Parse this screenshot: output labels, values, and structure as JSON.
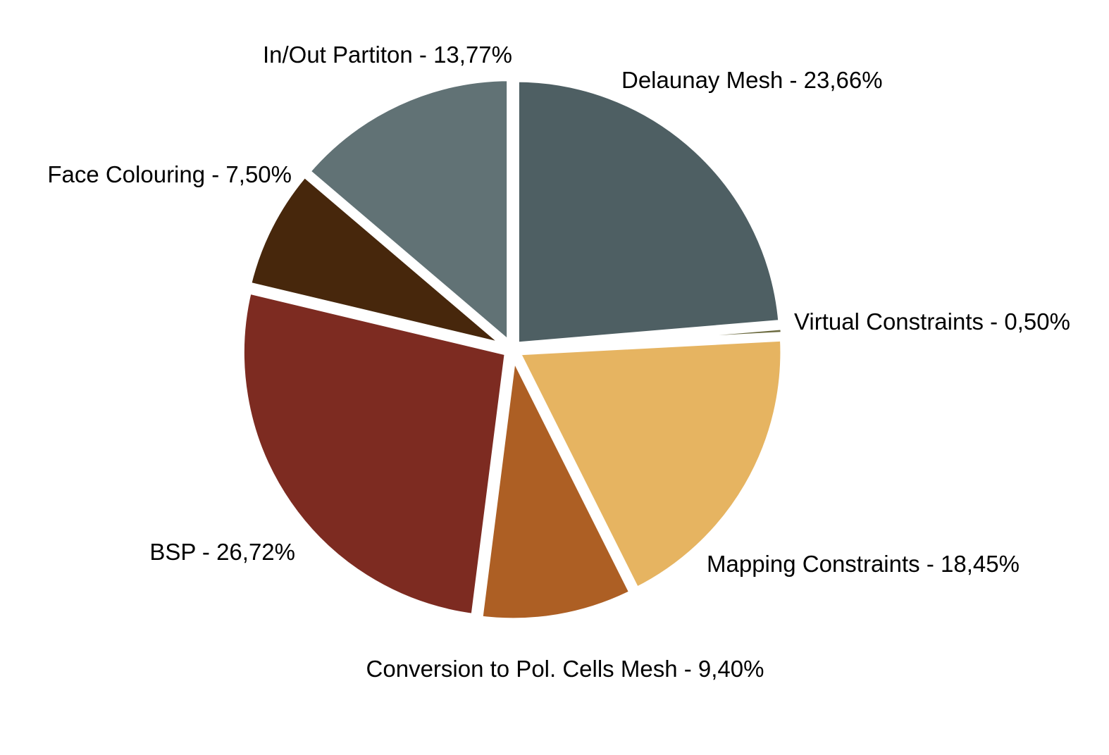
{
  "chart_data": {
    "type": "pie",
    "title": "",
    "legend": "none",
    "start_angle_deg": 0,
    "direction": "clockwise",
    "slices": [
      {
        "label": "Delaunay Mesh - 23,66%",
        "name": "Delaunay Mesh",
        "value": 23.66,
        "color": "#4e5f63"
      },
      {
        "label": "Virtual Constraints - 0,50%",
        "name": "Virtual Constraints",
        "value": 0.5,
        "color": "#6b6a3f"
      },
      {
        "label": "Mapping Constraints - 18,45%",
        "name": "Mapping Constraints",
        "value": 18.45,
        "color": "#e6b461"
      },
      {
        "label": "Conversion to Pol. Cells Mesh - 9,40%",
        "name": "Conversion to Pol. Cells Mesh",
        "value": 9.4,
        "color": "#ad5f24"
      },
      {
        "label": "BSP - 26,72%",
        "name": "BSP",
        "value": 26.72,
        "color": "#7d2b21"
      },
      {
        "label": "Face Colouring - 7,50%",
        "name": "Face Colouring",
        "value": 7.5,
        "color": "#47270c"
      },
      {
        "label": "In/Out Partiton - 13,77%",
        "name": "In/Out Partiton",
        "value": 13.77,
        "color": "#617275"
      }
    ]
  }
}
